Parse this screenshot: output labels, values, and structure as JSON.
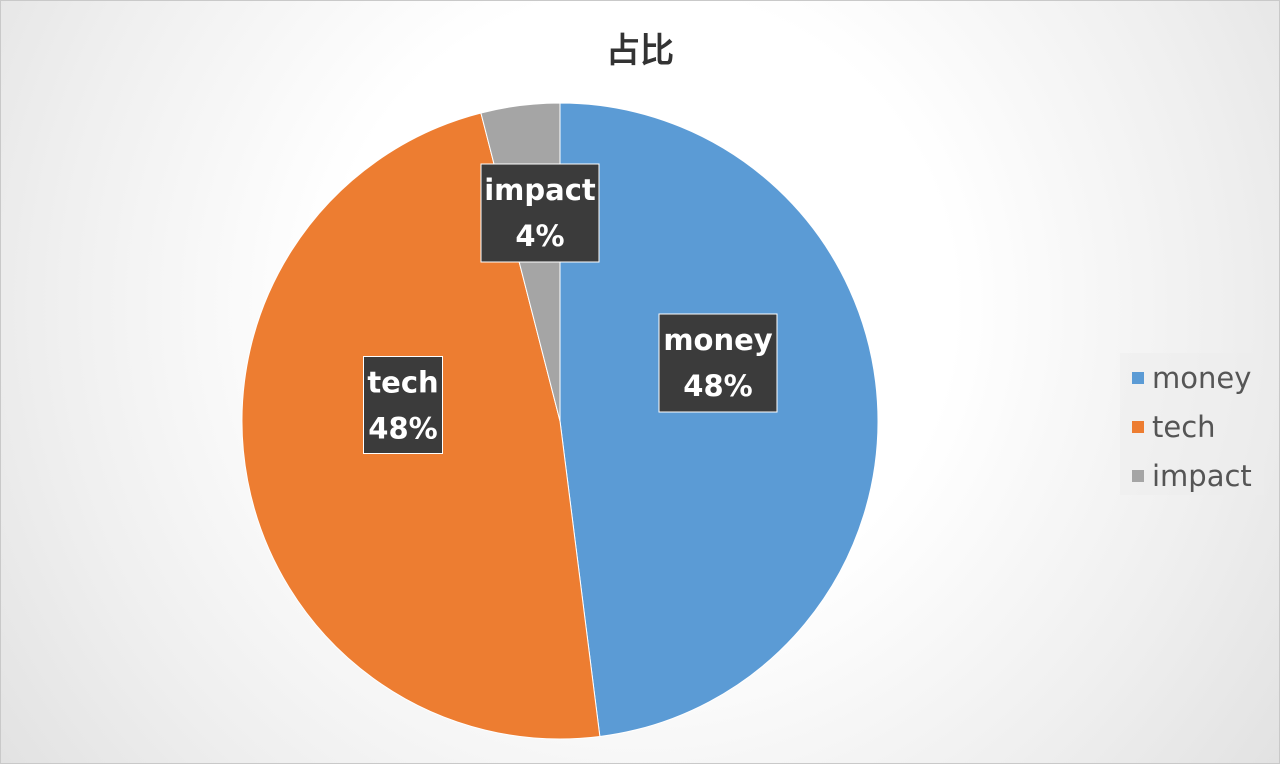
{
  "chart_data": {
    "type": "pie",
    "title": "占比",
    "labels": [
      "money",
      "tech",
      "impact"
    ],
    "values": [
      48,
      48,
      4
    ],
    "value_format": "percent",
    "colors": [
      "#5b9bd5",
      "#ed7d31",
      "#a5a5a5"
    ],
    "data_labels": [
      {
        "name": "money",
        "value": "48%"
      },
      {
        "name": "tech",
        "value": "48%"
      },
      {
        "name": "impact",
        "value": "4%"
      }
    ],
    "legend": {
      "placement": "right",
      "entries": [
        "money",
        "tech",
        "impact"
      ]
    },
    "start_angle": "12 o'clock",
    "direction": "clockwise"
  }
}
